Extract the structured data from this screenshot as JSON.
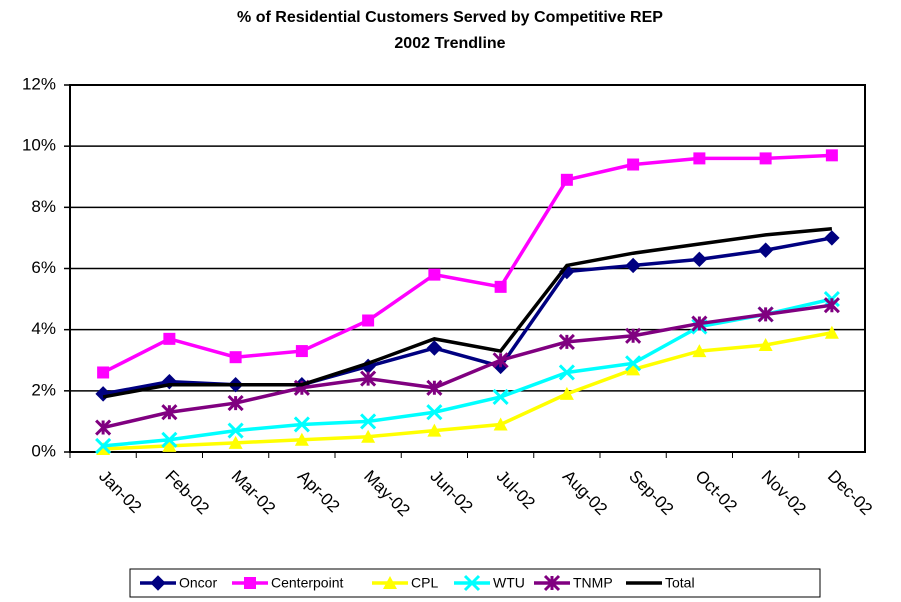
{
  "chart_data": {
    "type": "line",
    "title": "% of Residential Customers Served by Competitive REP",
    "subtitle": "2002 Trendline",
    "categories": [
      "Jan-02",
      "Feb-02",
      "Mar-02",
      "Apr-02",
      "May-02",
      "Jun-02",
      "Jul-02",
      "Aug-02",
      "Sep-02",
      "Oct-02",
      "Nov-02",
      "Dec-02"
    ],
    "series": [
      {
        "name": "Oncor",
        "color": "#000080",
        "marker": "diamond",
        "values": [
          1.9,
          2.3,
          2.2,
          2.2,
          2.8,
          3.4,
          2.8,
          5.9,
          6.1,
          6.3,
          6.6,
          7.0
        ]
      },
      {
        "name": "Centerpoint",
        "color": "#ff00ff",
        "marker": "square",
        "values": [
          2.6,
          3.7,
          3.1,
          3.3,
          4.3,
          5.8,
          5.4,
          8.9,
          9.4,
          9.6,
          9.6,
          9.7
        ]
      },
      {
        "name": "CPL",
        "color": "#ffff00",
        "marker": "triangle",
        "values": [
          0.1,
          0.2,
          0.3,
          0.4,
          0.5,
          0.7,
          0.9,
          1.9,
          2.7,
          3.3,
          3.5,
          3.9
        ]
      },
      {
        "name": "WTU",
        "color": "#00ffff",
        "marker": "x",
        "values": [
          0.2,
          0.4,
          0.7,
          0.9,
          1.0,
          1.3,
          1.8,
          2.6,
          2.9,
          4.1,
          4.5,
          5.0
        ]
      },
      {
        "name": "TNMP",
        "color": "#800080",
        "marker": "star",
        "values": [
          0.8,
          1.3,
          1.6,
          2.1,
          2.4,
          2.1,
          3.0,
          3.6,
          3.8,
          4.2,
          4.5,
          4.8
        ]
      },
      {
        "name": "Total",
        "color": "#000000",
        "marker": "none",
        "values": [
          1.8,
          2.2,
          2.2,
          2.2,
          2.9,
          3.7,
          3.3,
          6.1,
          6.5,
          6.8,
          7.1,
          7.3
        ]
      }
    ],
    "ylim": [
      0,
      12
    ],
    "yticks": [
      {
        "value": 0,
        "label": "0%"
      },
      {
        "value": 2,
        "label": "2%"
      },
      {
        "value": 4,
        "label": "4%"
      },
      {
        "value": 6,
        "label": "6%"
      },
      {
        "value": 8,
        "label": "8%"
      },
      {
        "value": 10,
        "label": "10%"
      },
      {
        "value": 12,
        "label": "12%"
      }
    ],
    "grid": true,
    "legend": "bottom"
  }
}
